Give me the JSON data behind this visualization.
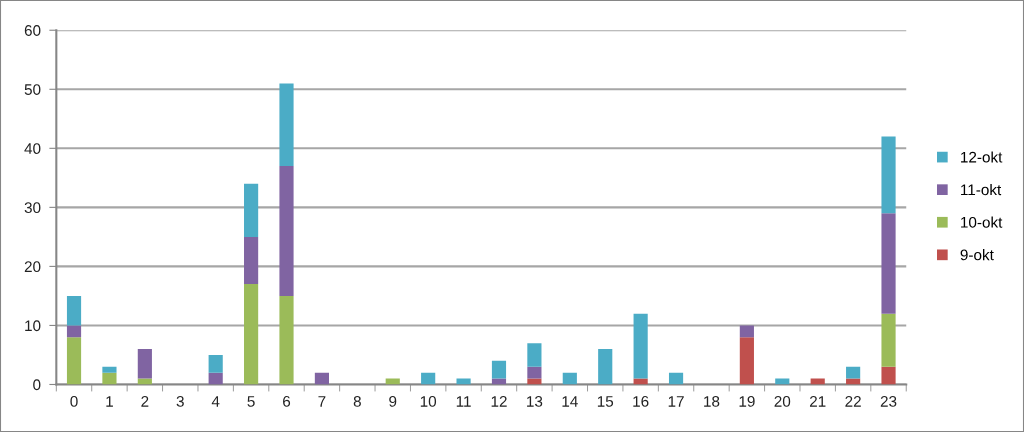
{
  "chart_data": {
    "type": "bar",
    "stacked": true,
    "categories": [
      "0",
      "1",
      "2",
      "3",
      "4",
      "5",
      "6",
      "7",
      "8",
      "9",
      "10",
      "11",
      "12",
      "13",
      "14",
      "15",
      "16",
      "17",
      "18",
      "19",
      "20",
      "21",
      "22",
      "23"
    ],
    "series": [
      {
        "name": "9-okt",
        "color": "#c0504d",
        "values": [
          0,
          0,
          0,
          0,
          0,
          0,
          0,
          0,
          0,
          0,
          0,
          0,
          0,
          1,
          0,
          0,
          1,
          0,
          0,
          8,
          0,
          1,
          1,
          3
        ]
      },
      {
        "name": "10-okt",
        "color": "#9bbb59",
        "values": [
          8,
          2,
          1,
          0,
          0,
          17,
          15,
          0,
          0,
          1,
          0,
          0,
          0,
          0,
          0,
          0,
          0,
          0,
          0,
          0,
          0,
          0,
          0,
          9
        ]
      },
      {
        "name": "11-okt",
        "color": "#8064a2",
        "values": [
          2,
          0,
          5,
          0,
          2,
          8,
          22,
          2,
          0,
          0,
          0,
          0,
          1,
          2,
          0,
          0,
          0,
          0,
          0,
          2,
          0,
          0,
          0,
          17
        ]
      },
      {
        "name": "12-okt",
        "color": "#4bacc6",
        "values": [
          5,
          1,
          0,
          0,
          3,
          9,
          14,
          0,
          0,
          0,
          2,
          1,
          3,
          4,
          2,
          6,
          11,
          2,
          0,
          0,
          1,
          0,
          2,
          13
        ]
      }
    ],
    "ylim": [
      0,
      60
    ],
    "yticks": [
      0,
      10,
      20,
      30,
      40,
      50,
      60
    ],
    "grid": "y",
    "legend": "right"
  }
}
